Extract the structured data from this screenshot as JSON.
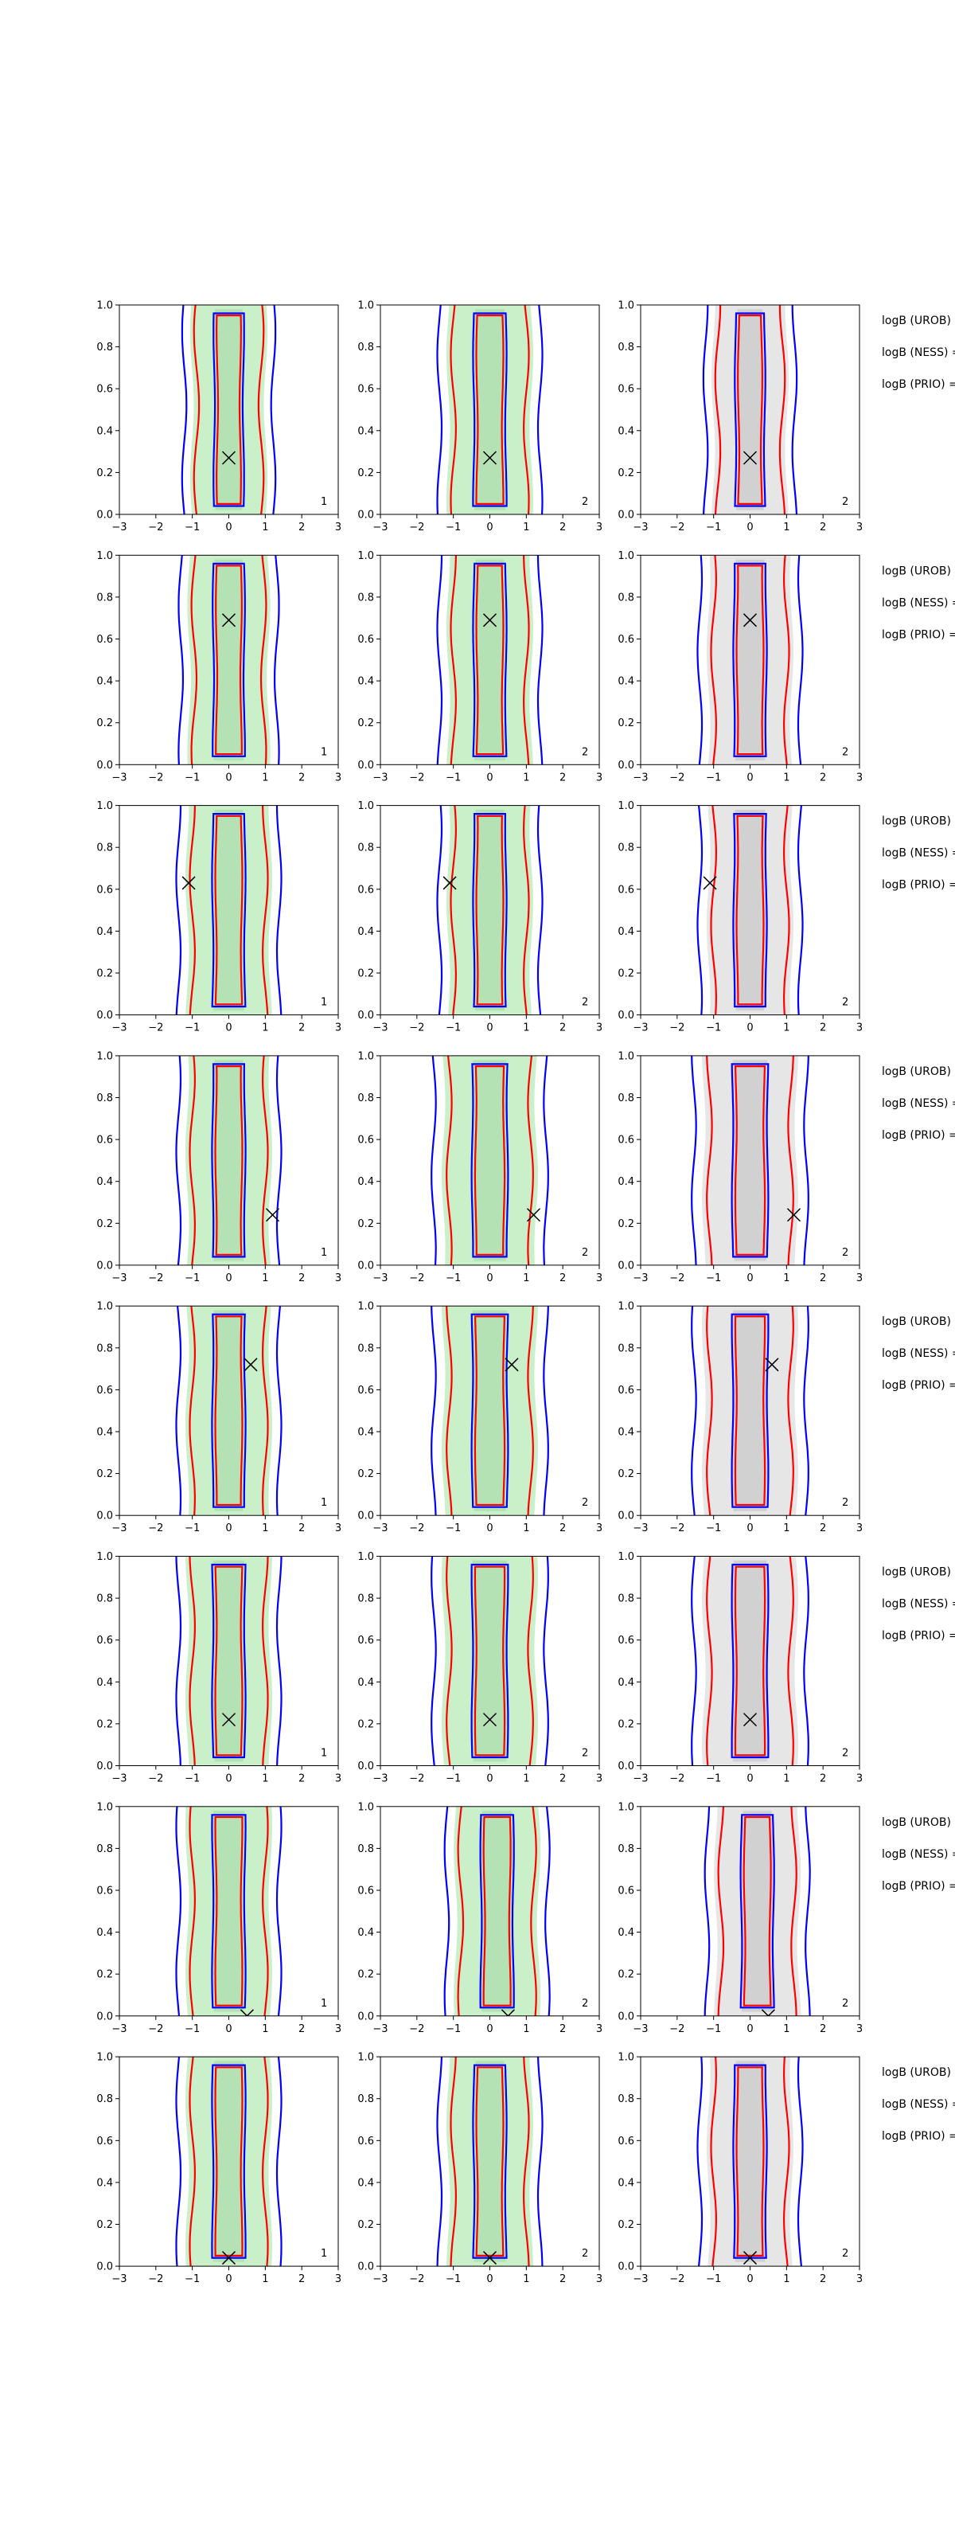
{
  "chart_data": {
    "type": "contour",
    "layout": {
      "rows": 8,
      "cols": 3
    },
    "axes": {
      "xlim": [
        -3,
        3
      ],
      "ylim": [
        0.0,
        1.0
      ],
      "xticks": [
        "−3",
        "−2",
        "−1",
        "0",
        "1",
        "2",
        "3"
      ],
      "yticks": [
        "0.0",
        "0.2",
        "0.4",
        "0.6",
        "0.8",
        "1.0"
      ]
    },
    "corner_labels": [
      "1",
      "2",
      "2"
    ],
    "side_labels": [
      "logB (UROB) =",
      "logB (NESS) =",
      "logB (PRIO) ="
    ],
    "series_colors": {
      "blue": "#0000ff",
      "red": "#ff0000",
      "green_fill": "#9fe39f",
      "gray_fill": "#c8c8c8"
    },
    "rows": [
      {
        "marker": [
          0.0,
          0.27
        ],
        "centers": [
          0.0,
          0.0,
          0.0
        ],
        "widths": [
          0.35,
          0.4,
          0.35
        ]
      },
      {
        "marker": [
          0.0,
          0.69
        ],
        "centers": [
          0.0,
          0.0,
          0.0
        ],
        "widths": [
          0.38,
          0.4,
          0.4
        ]
      },
      {
        "marker": [
          -1.1,
          0.63
        ],
        "centers": [
          0.0,
          0.0,
          0.0
        ],
        "widths": [
          0.4,
          0.4,
          0.4
        ]
      },
      {
        "marker": [
          1.2,
          0.24
        ],
        "centers": [
          0.0,
          0.0,
          0.0
        ],
        "widths": [
          0.4,
          0.45,
          0.45
        ]
      },
      {
        "marker": [
          0.6,
          0.72
        ],
        "centers": [
          0.0,
          0.0,
          0.0
        ],
        "widths": [
          0.4,
          0.45,
          0.45
        ]
      },
      {
        "marker": [
          0.0,
          0.22
        ],
        "centers": [
          0.0,
          0.0,
          0.0
        ],
        "widths": [
          0.4,
          0.45,
          0.45
        ]
      },
      {
        "marker": [
          0.5,
          0.0
        ],
        "centers": [
          0.0,
          0.2,
          0.2
        ],
        "widths": [
          0.4,
          0.4,
          0.4
        ]
      },
      {
        "marker": [
          0.0,
          0.04
        ],
        "centers": [
          0.0,
          0.0,
          0.0
        ],
        "widths": [
          0.4,
          0.4,
          0.4
        ]
      }
    ]
  }
}
